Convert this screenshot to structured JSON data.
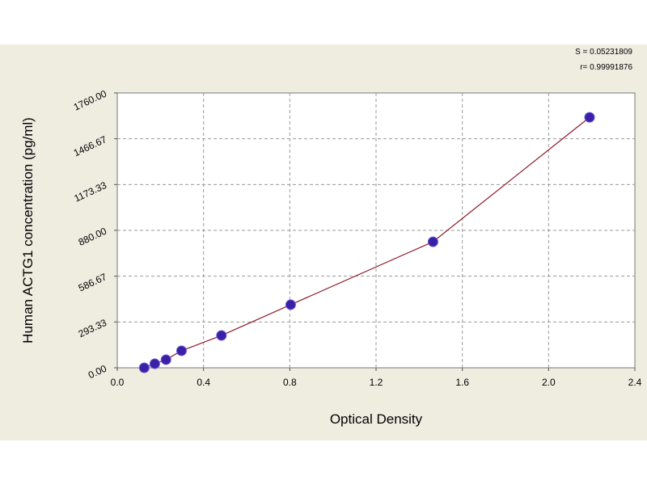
{
  "chart_data": {
    "type": "scatter",
    "xlabel": "Optical Density",
    "ylabel": "Human ACTG1 concentration (pg/ml)",
    "annotations": [
      "S = 0.05231809",
      "r= 0.99991876"
    ],
    "x": [
      0.125,
      0.174,
      0.226,
      0.298,
      0.483,
      0.804,
      1.464,
      2.19
    ],
    "values": [
      0,
      26,
      52,
      109,
      207,
      404,
      807,
      1604
    ],
    "color": "#3a1fa8",
    "line_color": "#8b1a2a",
    "xlim": [
      0,
      2.4
    ],
    "xticks": [
      {
        "value": 0,
        "label": "0.0"
      },
      0.4,
      0.8,
      1.2,
      1.6,
      {
        "value": 2,
        "label": "2.0"
      },
      2.4
    ],
    "ylim": [
      0,
      1760
    ],
    "yticks": [
      {
        "value": 0,
        "label": "0.00"
      },
      293.33,
      586.67,
      {
        "value": 880,
        "label": "880.00"
      },
      1173.33,
      1466.67,
      {
        "value": 1760,
        "label": "1760.00"
      }
    ],
    "grid": true
  }
}
